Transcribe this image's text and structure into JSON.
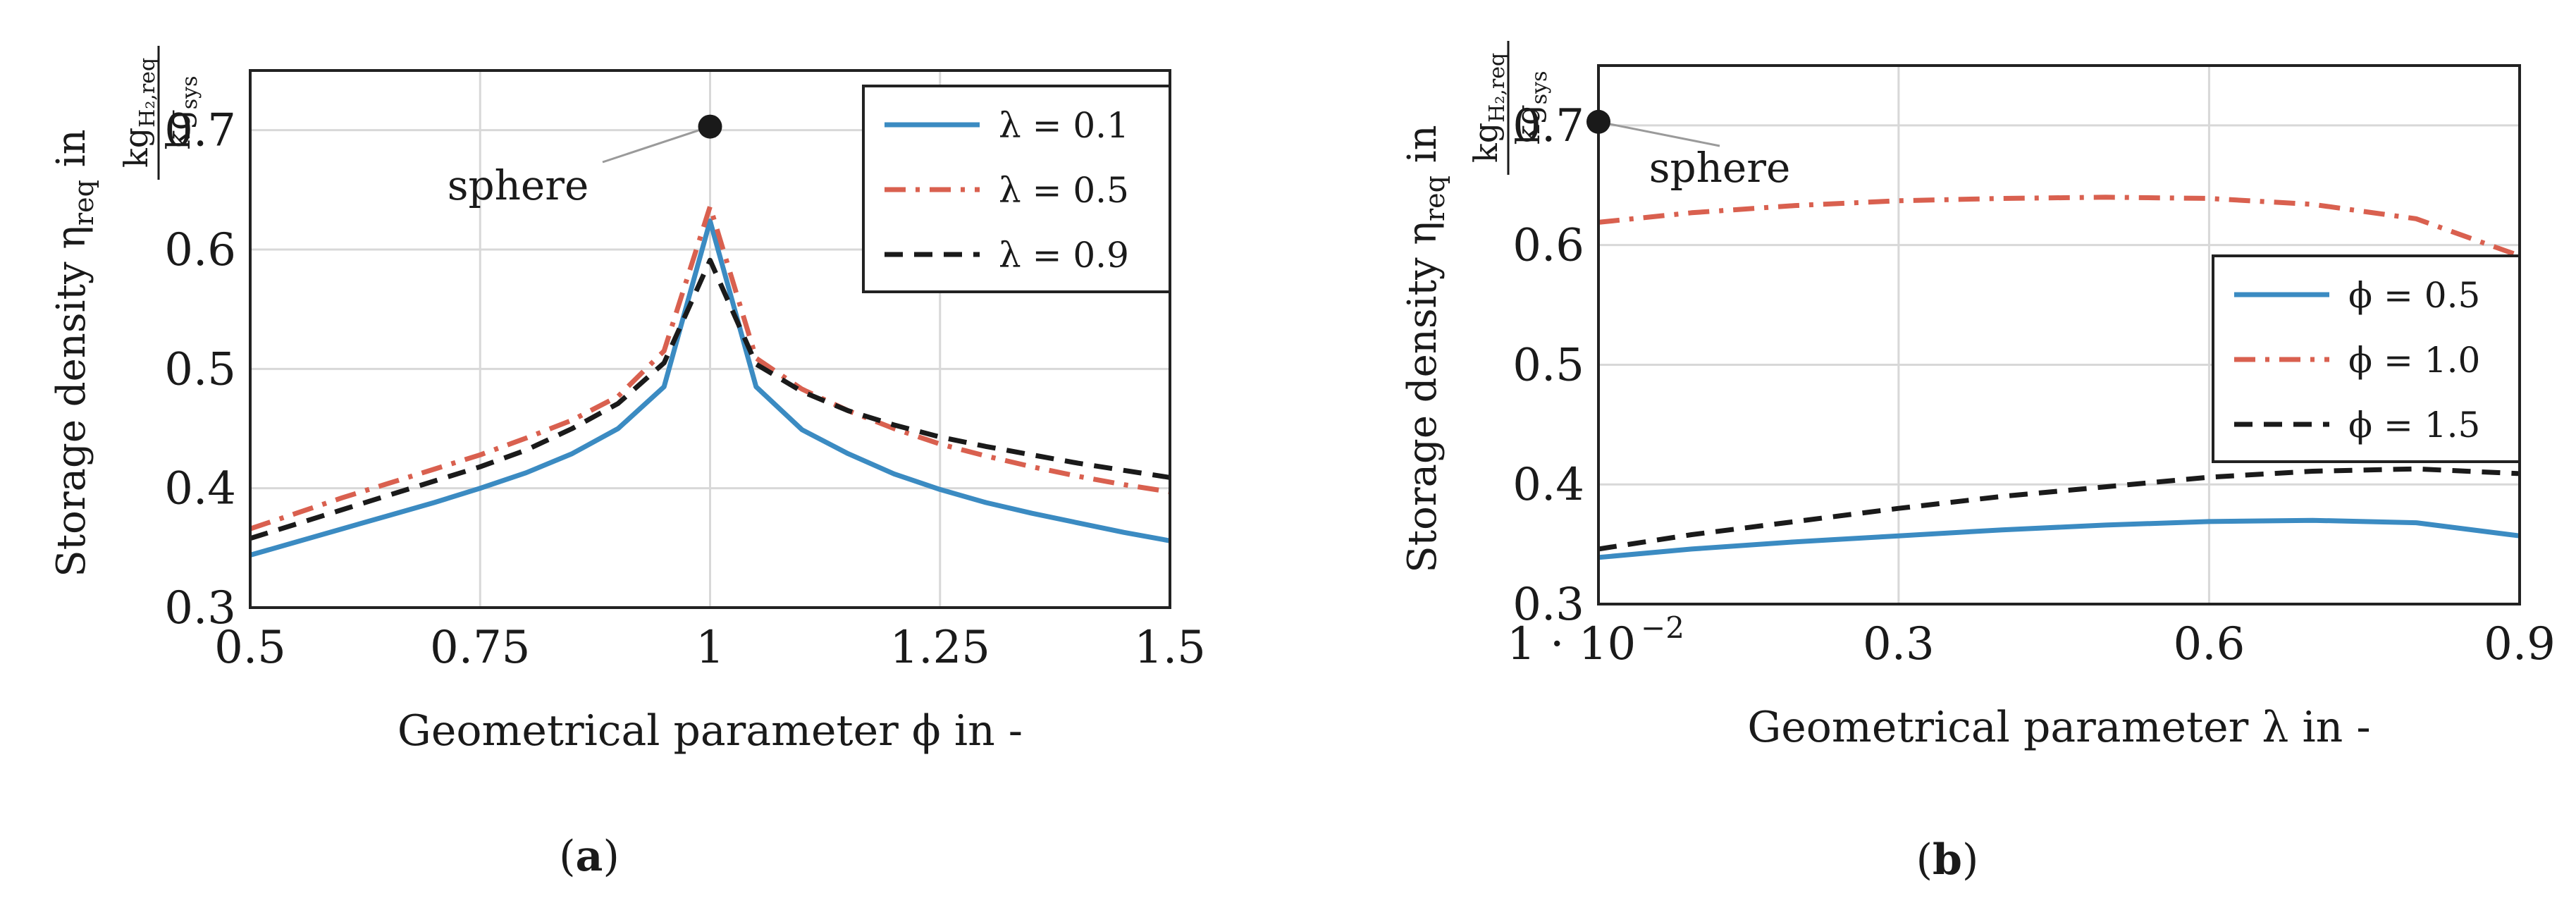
{
  "chart_data": [
    {
      "type": "line",
      "panel_label": "a",
      "xlabel": "Geometrical parameter ϕ in -",
      "ylabel": "Storage density η_req in kg_H2,req / kg_sys",
      "ylabel_text": "Storage density η",
      "ylabel_sub": "req",
      "ylabel_in": " in ",
      "unit_num": "kg",
      "unit_num_sub": "H₂,req",
      "unit_den": "kg",
      "unit_den_sub": "sys",
      "xlim": [
        0.5,
        1.5
      ],
      "ylim": [
        0.3,
        0.75
      ],
      "xticks": [
        0.5,
        0.75,
        1,
        1.25,
        1.5
      ],
      "xtick_labels": [
        "0.5",
        "0.75",
        "1",
        "1.25",
        "1.5"
      ],
      "yticks": [
        0.3,
        0.4,
        0.5,
        0.6,
        0.7
      ],
      "ytick_labels": [
        "0.3",
        "0.4",
        "0.5",
        "0.6",
        "0.7"
      ],
      "grid": true,
      "legend_position": "top-right",
      "annotation": {
        "text": "sphere",
        "x": 1.0,
        "y": 0.703
      },
      "series": [
        {
          "name": "λ = 0.1",
          "style": "solid",
          "color": "#3b8bc2",
          "x": [
            0.5,
            0.55,
            0.6,
            0.65,
            0.7,
            0.75,
            0.8,
            0.85,
            0.9,
            0.95,
            1.0,
            1.05,
            1.1,
            1.15,
            1.2,
            1.25,
            1.3,
            1.35,
            1.4,
            1.45,
            1.5
          ],
          "y": [
            0.344,
            0.355,
            0.366,
            0.377,
            0.388,
            0.4,
            0.413,
            0.429,
            0.45,
            0.485,
            0.624,
            0.485,
            0.449,
            0.429,
            0.412,
            0.399,
            0.388,
            0.379,
            0.371,
            0.363,
            0.356
          ]
        },
        {
          "name": "λ = 0.5",
          "style": "dashdot",
          "color": "#d9604f",
          "x": [
            0.5,
            0.55,
            0.6,
            0.65,
            0.7,
            0.75,
            0.8,
            0.85,
            0.9,
            0.95,
            1.0,
            1.05,
            1.1,
            1.15,
            1.2,
            1.25,
            1.3,
            1.35,
            1.4,
            1.45,
            1.5
          ],
          "y": [
            0.366,
            0.379,
            0.392,
            0.404,
            0.416,
            0.428,
            0.442,
            0.457,
            0.477,
            0.515,
            0.636,
            0.509,
            0.483,
            0.465,
            0.45,
            0.437,
            0.427,
            0.418,
            0.41,
            0.403,
            0.397
          ]
        },
        {
          "name": "λ = 0.9",
          "style": "dashed",
          "color": "#1a1a1a",
          "x": [
            0.5,
            0.55,
            0.6,
            0.65,
            0.7,
            0.75,
            0.8,
            0.85,
            0.9,
            0.95,
            1.0,
            1.05,
            1.1,
            1.15,
            1.2,
            1.25,
            1.3,
            1.35,
            1.4,
            1.45,
            1.5
          ],
          "y": [
            0.358,
            0.37,
            0.382,
            0.394,
            0.406,
            0.418,
            0.432,
            0.45,
            0.471,
            0.505,
            0.591,
            0.504,
            0.481,
            0.465,
            0.453,
            0.443,
            0.435,
            0.428,
            0.421,
            0.415,
            0.409
          ]
        }
      ],
      "legend": [
        "λ = 0.1",
        "λ = 0.5",
        "λ = 0.9"
      ]
    },
    {
      "type": "line",
      "panel_label": "b",
      "xlabel": "Geometrical parameter λ in -",
      "ylabel": "Storage density η_req in kg_H2,req / kg_sys",
      "ylabel_text": "Storage density η",
      "ylabel_sub": "req",
      "ylabel_in": " in ",
      "unit_num": "kg",
      "unit_num_sub": "H₂,req",
      "unit_den": "kg",
      "unit_den_sub": "sys",
      "xlim": [
        0.01,
        0.9
      ],
      "ylim": [
        0.3,
        0.75
      ],
      "xticks": [
        0.01,
        0.3,
        0.6,
        0.9
      ],
      "xtick_labels": [
        "1 · 10",
        "0.3",
        "0.6",
        "0.9"
      ],
      "xtick_exponent": "−2",
      "yticks": [
        0.3,
        0.4,
        0.5,
        0.6,
        0.7
      ],
      "ytick_labels": [
        "0.3",
        "0.4",
        "0.5",
        "0.6",
        "0.7"
      ],
      "grid": true,
      "legend_position": "center-right",
      "annotation": {
        "text": "sphere",
        "x": 0.01,
        "y": 0.703
      },
      "series": [
        {
          "name": "ϕ = 0.5",
          "style": "solid",
          "color": "#3b8bc2",
          "x": [
            0.01,
            0.1,
            0.2,
            0.3,
            0.4,
            0.5,
            0.6,
            0.7,
            0.8,
            0.9
          ],
          "y": [
            0.339,
            0.346,
            0.352,
            0.357,
            0.362,
            0.366,
            0.369,
            0.37,
            0.368,
            0.357
          ]
        },
        {
          "name": "ϕ = 1.0",
          "style": "dashdot",
          "color": "#d9604f",
          "x": [
            0.01,
            0.1,
            0.2,
            0.3,
            0.4,
            0.5,
            0.6,
            0.7,
            0.8,
            0.9
          ],
          "y": [
            0.619,
            0.627,
            0.633,
            0.637,
            0.639,
            0.64,
            0.639,
            0.634,
            0.622,
            0.591
          ]
        },
        {
          "name": "ϕ = 1.5",
          "style": "dashed",
          "color": "#1a1a1a",
          "x": [
            0.01,
            0.1,
            0.2,
            0.3,
            0.4,
            0.5,
            0.6,
            0.7,
            0.8,
            0.9
          ],
          "y": [
            0.346,
            0.358,
            0.369,
            0.38,
            0.39,
            0.398,
            0.406,
            0.411,
            0.413,
            0.409
          ]
        }
      ],
      "legend": [
        "ϕ = 0.5",
        "ϕ = 1.0",
        "ϕ = 1.5"
      ]
    }
  ]
}
